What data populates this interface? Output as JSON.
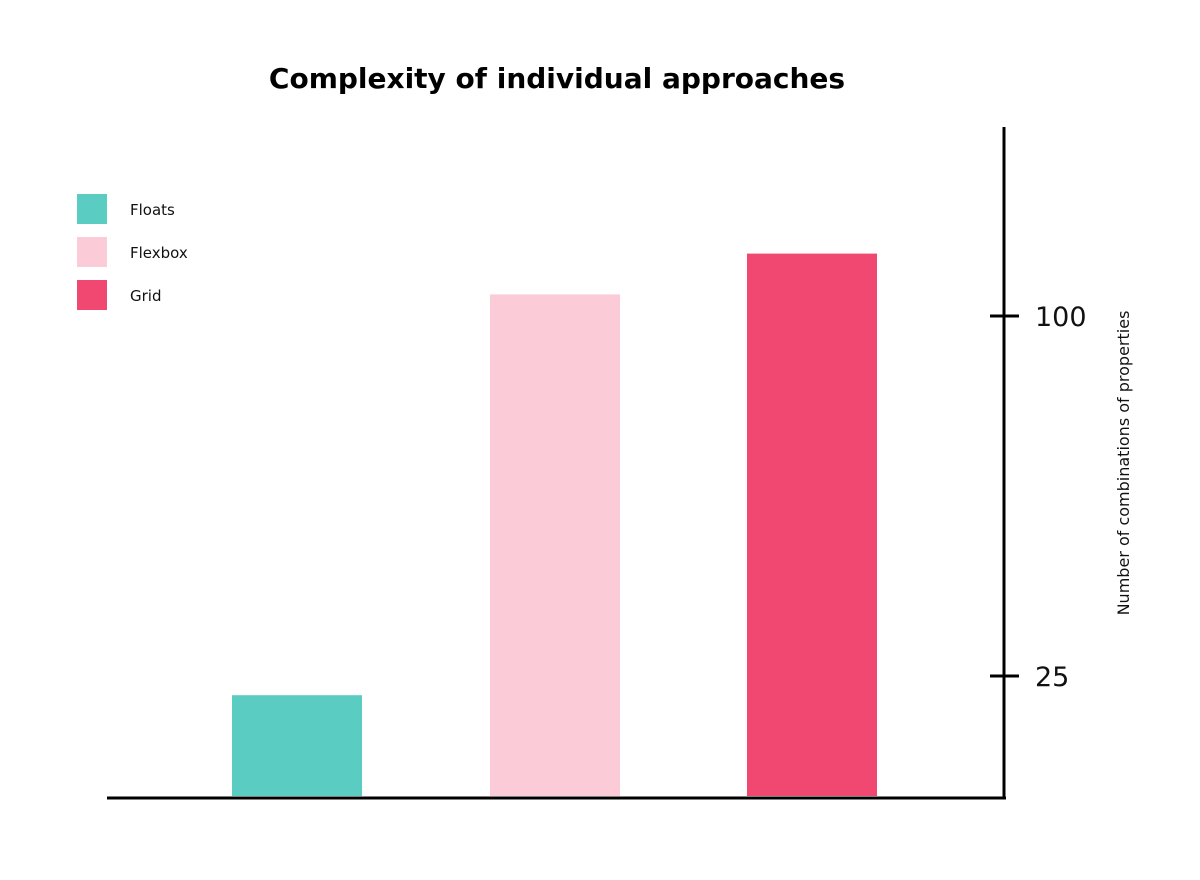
{
  "chart_data": {
    "type": "bar",
    "title": "Complexity of individual approaches",
    "ylabel": "Number of combinations of properties",
    "xlabel": "",
    "categories": [
      "Floats",
      "Flexbox",
      "Grid"
    ],
    "values": [
      21,
      104.5,
      113
    ],
    "colors": [
      "#5bccc1",
      "#fbccd7",
      "#f04870"
    ],
    "yticks": [
      25,
      100
    ],
    "ylim": [
      0,
      118
    ],
    "y_axis_position": "right",
    "legend": {
      "placement": "top-left",
      "entries": [
        "Floats",
        "Flexbox",
        "Grid"
      ]
    },
    "grid": false
  }
}
